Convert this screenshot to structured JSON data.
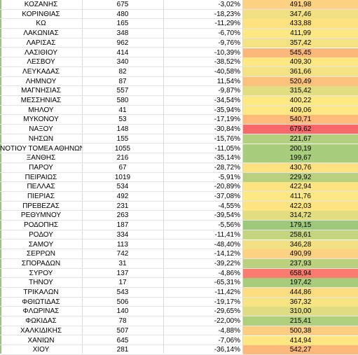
{
  "rows": [
    {
      "name": "ΚΟΖΑΝΗΣ",
      "count": "675",
      "pct": "-3,02%",
      "value": "491,98",
      "color": "#fdd283"
    },
    {
      "name": "ΚΟΡΙΝΘΙΑΣ",
      "count": "480",
      "pct": "-18,23%",
      "value": "347,46",
      "color": "#f1e183"
    },
    {
      "name": "ΚΩ",
      "count": "165",
      "pct": "-11,29%",
      "value": "433,88",
      "color": "#fee282"
    },
    {
      "name": "ΛΑΚΩΝΙΑΣ",
      "count": "348",
      "pct": "-6,70%",
      "value": "411,99",
      "color": "#fee883"
    },
    {
      "name": "ΛΑΡΙΣΑΣ",
      "count": "962",
      "pct": "-9,76%",
      "value": "357,42",
      "color": "#f4e283"
    },
    {
      "name": "ΛΑΣΙΘΙΟΥ",
      "count": "414",
      "pct": "-10,39%",
      "value": "545,45",
      "color": "#fcb77a"
    },
    {
      "name": "ΛΕΣΒΟΥ",
      "count": "340",
      "pct": "-38,52%",
      "value": "409,30",
      "color": "#fee883"
    },
    {
      "name": "ΛΕΥΚΑΔΑΣ",
      "count": "82",
      "pct": "-40,58%",
      "value": "361,66",
      "color": "#f5e383"
    },
    {
      "name": "ΛΗΜΝΟΥ",
      "count": "87",
      "pct": "11,54%",
      "value": "520,49",
      "color": "#fcc27d"
    },
    {
      "name": "ΜΑΓΝΗΣΙΑΣ",
      "count": "557",
      "pct": "-9,87%",
      "value": "315,42",
      "color": "#e2dd81"
    },
    {
      "name": "ΜΕΣΣΗΝΙΑΣ",
      "count": "580",
      "pct": "-34,54%",
      "value": "400,22",
      "color": "#fee983"
    },
    {
      "name": "ΜΗΛΟΥ",
      "count": "41",
      "pct": "-35,94%",
      "value": "409,06",
      "color": "#fee883"
    },
    {
      "name": "ΜΥΚΟΝΟΥ",
      "count": "53",
      "pct": "-17,19%",
      "value": "540,71",
      "color": "#fcba7b"
    },
    {
      "name": "ΝΑΞΟΥ",
      "count": "148",
      "pct": "-30,84%",
      "value": "679,62",
      "color": "#f8696b"
    },
    {
      "name": "ΝΗΣΩΝ",
      "count": "155",
      "pct": "-15,76%",
      "value": "221,67",
      "color": "#b3d07e"
    },
    {
      "name": "ΝΟΤΙΟΥ ΤΟΜΕΑ ΑΘΗΝΩΝ",
      "count": "1055",
      "pct": "-11,05%",
      "value": "200,19",
      "color": "#a8cd7c"
    },
    {
      "name": "ΞΑΝΘΗΣ",
      "count": "216",
      "pct": "-35,14%",
      "value": "199,67",
      "color": "#a8cd7c"
    },
    {
      "name": "ΠΑΡΟΥ",
      "count": "67",
      "pct": "-28,72%",
      "value": "430,76",
      "color": "#fee282"
    },
    {
      "name": "ΠΕΙΡΑΙΩΣ",
      "count": "1019",
      "pct": "-5,91%",
      "value": "229,92",
      "color": "#b7d17e"
    },
    {
      "name": "ΠΕΛΛΑΣ",
      "count": "534",
      "pct": "-20,89%",
      "value": "422,94",
      "color": "#fee582"
    },
    {
      "name": "ΠΙΕΡΙΑΣ",
      "count": "492",
      "pct": "-37,08%",
      "value": "411,76",
      "color": "#fee883"
    },
    {
      "name": "ΠΡΕΒΕΖΑΣ",
      "count": "231",
      "pct": "-4,55%",
      "value": "422,03",
      "color": "#fee582"
    },
    {
      "name": "ΡΕΘΥΜΝΟΥ",
      "count": "263",
      "pct": "-39,54%",
      "value": "314,72",
      "color": "#e2dd81"
    },
    {
      "name": "ΡΟΔΟΠΗΣ",
      "count": "187",
      "pct": "-5,56%",
      "value": "179,15",
      "color": "#9ec97b"
    },
    {
      "name": "ΡΟΔΟΥ",
      "count": "334",
      "pct": "-11,41%",
      "value": "258,61",
      "color": "#c4d57f"
    },
    {
      "name": "ΣΑΜΟΥ",
      "count": "113",
      "pct": "-48,40%",
      "value": "346,28",
      "color": "#f1e183"
    },
    {
      "name": "ΣΕΡΡΩΝ",
      "count": "742",
      "pct": "-14,12%",
      "value": "490,99",
      "color": "#fdd283"
    },
    {
      "name": "ΣΠΟΡΑΔΩΝ",
      "count": "31",
      "pct": "-39,22%",
      "value": "237,93",
      "color": "#bad27e"
    },
    {
      "name": "ΣΥΡΟΥ",
      "count": "137",
      "pct": "-4,86%",
      "value": "658,94",
      "color": "#f97c6e"
    },
    {
      "name": "ΤΗΝΟΥ",
      "count": "17",
      "pct": "-65,31%",
      "value": "197,42",
      "color": "#a7cc7c"
    },
    {
      "name": "ΤΡΙΚΑΛΩΝ",
      "count": "543",
      "pct": "-11,42%",
      "value": "444,86",
      "color": "#fedd81"
    },
    {
      "name": "ΦΘΙΩΤΙΔΑΣ",
      "count": "506",
      "pct": "-19,17%",
      "value": "367,32",
      "color": "#f7e483"
    },
    {
      "name": "ΦΛΩΡΙΝΑΣ",
      "count": "140",
      "pct": "-29,65%",
      "value": "310,00",
      "color": "#e0dc81"
    },
    {
      "name": "ΦΩΚΙΔΑΣ",
      "count": "78",
      "pct": "-22,00%",
      "value": "215,41",
      "color": "#b0cf7d"
    },
    {
      "name": "ΧΑΛΚΙΔΙΚΗΣ",
      "count": "507",
      "pct": "-4,88%",
      "value": "500,38",
      "color": "#fdcd81"
    },
    {
      "name": "ΧΑΝΙΩΝ",
      "count": "645",
      "pct": "-7,06%",
      "value": "414,94",
      "color": "#fee783"
    },
    {
      "name": "ΧΙΟΥ",
      "count": "281",
      "pct": "-36,14%",
      "value": "542,27",
      "color": "#fcb97b"
    }
  ]
}
